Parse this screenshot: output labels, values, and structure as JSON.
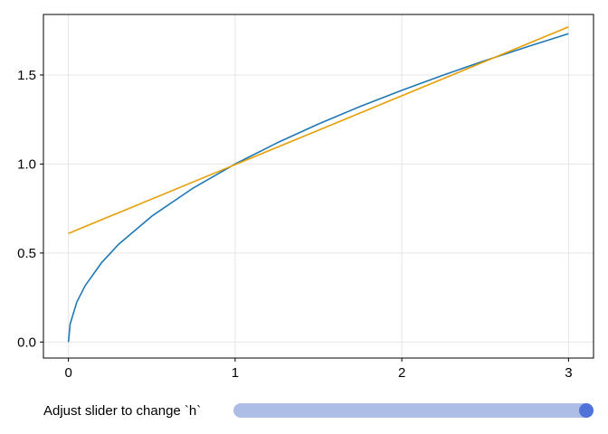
{
  "chart_data": {
    "type": "line",
    "title": "",
    "xlabel": "",
    "ylabel": "",
    "xlim": [
      -0.15,
      3.15
    ],
    "ylim": [
      -0.09,
      1.84
    ],
    "xticks": [
      0,
      1,
      2,
      3
    ],
    "yticks": [
      0.0,
      0.5,
      1.0,
      1.5
    ],
    "xtick_labels": [
      "0",
      "1",
      "2",
      "3"
    ],
    "ytick_labels": [
      "0.0",
      "0.5",
      "1.0",
      "1.5"
    ],
    "grid": true,
    "series": [
      {
        "color": "#1f77b4",
        "x": [
          0,
          0.01,
          0.05,
          0.1,
          0.2,
          0.3,
          0.5,
          0.75,
          1.0,
          1.25,
          1.5,
          1.75,
          2.0,
          2.25,
          2.5,
          2.75,
          3.0
        ],
        "y": [
          0,
          0.1,
          0.224,
          0.316,
          0.447,
          0.548,
          0.707,
          0.866,
          1.0,
          1.118,
          1.225,
          1.323,
          1.414,
          1.5,
          1.581,
          1.658,
          1.732
        ]
      },
      {
        "color": "#e69f00",
        "x": [
          0,
          3
        ],
        "y": [
          0.61,
          1.77
        ]
      }
    ]
  },
  "slider": {
    "label": "Adjust slider to change `h`",
    "value_fraction": 1.0,
    "track_color": "#aebde6",
    "handle_color": "#4f73d9"
  },
  "colors": {
    "axis": "#000000",
    "grid": "#e5e5e5"
  }
}
